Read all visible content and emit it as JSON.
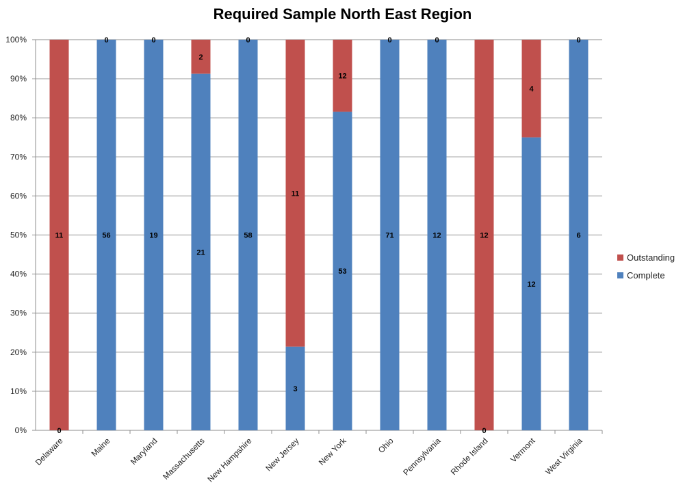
{
  "chart_data": {
    "type": "bar",
    "stacked": true,
    "percent_stacked": true,
    "title": "Required Sample North East Region",
    "categories": [
      "Delaware",
      "Maine",
      "Maryland",
      "Massachusetts",
      "New Hampshire",
      "New Jersey",
      "New York",
      "Ohio",
      "Pennsylvania",
      "Rhode Island",
      "Vermont",
      "West Virginia"
    ],
    "series": [
      {
        "name": "Complete",
        "color": "#4f81bd",
        "values": [
          0,
          56,
          19,
          21,
          58,
          3,
          53,
          71,
          12,
          0,
          12,
          6
        ]
      },
      {
        "name": "Outstanding",
        "color": "#c0504d",
        "values": [
          11,
          0,
          0,
          2,
          0,
          11,
          12,
          0,
          0,
          12,
          4,
          0
        ]
      }
    ],
    "y_ticks": [
      "0%",
      "10%",
      "20%",
      "30%",
      "40%",
      "50%",
      "60%",
      "70%",
      "80%",
      "90%",
      "100%"
    ],
    "ylim": [
      0,
      100
    ],
    "grid": true,
    "legend_position": "right"
  }
}
